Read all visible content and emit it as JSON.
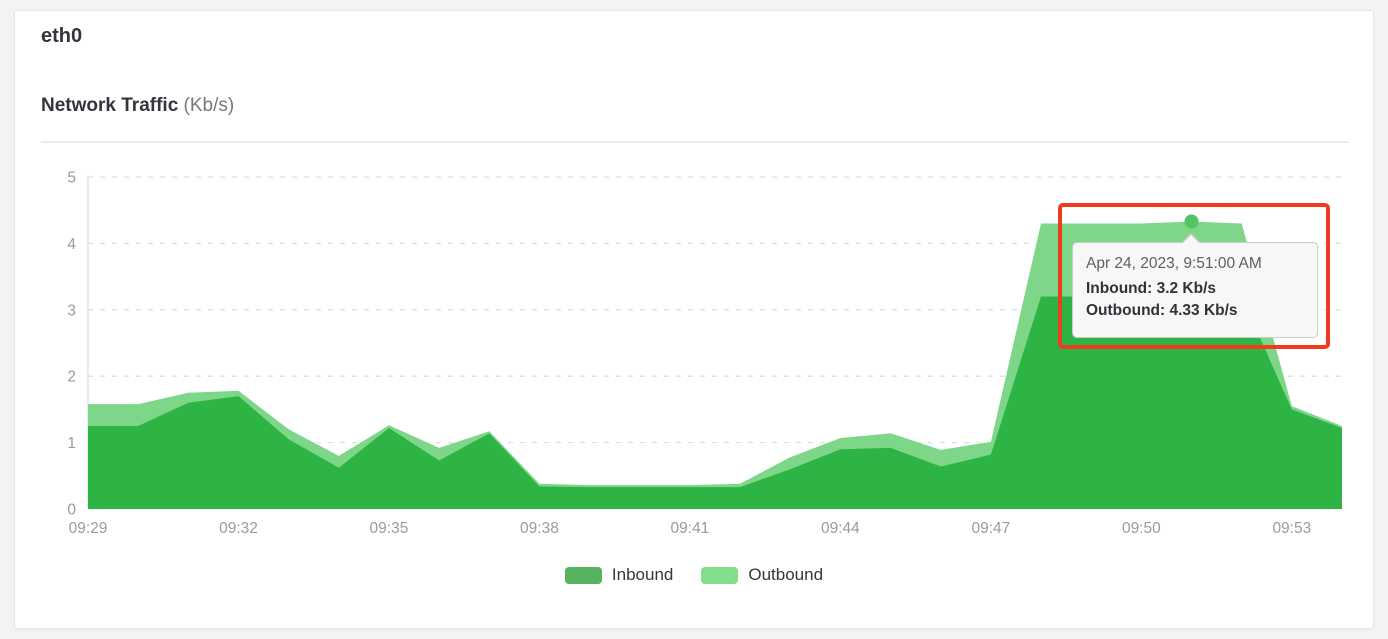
{
  "header": {
    "title": "eth0",
    "chart_title": "Network Traffic",
    "chart_unit": "(Kb/s)"
  },
  "chart_data": {
    "type": "area",
    "title": "Network Traffic (Kb/s)",
    "xlabel": "",
    "ylabel": "",
    "ylim": [
      0,
      5
    ],
    "yticks": [
      0,
      1,
      2,
      3,
      4,
      5
    ],
    "grid": "dashed-horizontal",
    "legend_position": "bottom-center",
    "x": [
      "09:29",
      "09:30",
      "09:31",
      "09:32",
      "09:33",
      "09:34",
      "09:35",
      "09:36",
      "09:37",
      "09:38",
      "09:39",
      "09:40",
      "09:41",
      "09:42",
      "09:43",
      "09:44",
      "09:45",
      "09:46",
      "09:47",
      "09:48",
      "09:49",
      "09:50",
      "09:51",
      "09:52",
      "09:53",
      "09:54"
    ],
    "x_tick_labels": [
      "09:29",
      "09:32",
      "09:35",
      "09:38",
      "09:41",
      "09:44",
      "09:47",
      "09:50",
      "09:53"
    ],
    "series": [
      {
        "name": "Inbound",
        "values": [
          1.25,
          1.25,
          1.6,
          1.7,
          1.05,
          0.62,
          1.22,
          0.73,
          1.14,
          0.34,
          0.33,
          0.33,
          0.33,
          0.33,
          0.6,
          0.9,
          0.92,
          0.64,
          0.82,
          3.2,
          3.2,
          3.2,
          3.2,
          3.2,
          1.5,
          1.22
        ]
      },
      {
        "name": "Outbound",
        "values": [
          1.58,
          1.58,
          1.75,
          1.78,
          1.2,
          0.8,
          1.26,
          0.92,
          1.17,
          0.38,
          0.36,
          0.36,
          0.36,
          0.38,
          0.78,
          1.07,
          1.14,
          0.89,
          1.01,
          4.3,
          4.3,
          4.3,
          4.33,
          4.3,
          1.55,
          1.25
        ]
      }
    ]
  },
  "tooltip": {
    "date_line": "Apr 24, 2023, 9:51:00 AM",
    "inbound_line": "Inbound: 3.2 Kb/s",
    "outbound_line": "Outbound: 4.33 Kb/s",
    "point_time": "09:51",
    "point_series": "Outbound",
    "point_value": 4.33
  },
  "colors": {
    "inbound_area": "#2db445",
    "outbound_area": "#7ed789",
    "inbound_legend": "#57b360",
    "outbound_legend": "#82de8b",
    "marker": "#53c462",
    "highlight_red": "#ef3b20"
  }
}
